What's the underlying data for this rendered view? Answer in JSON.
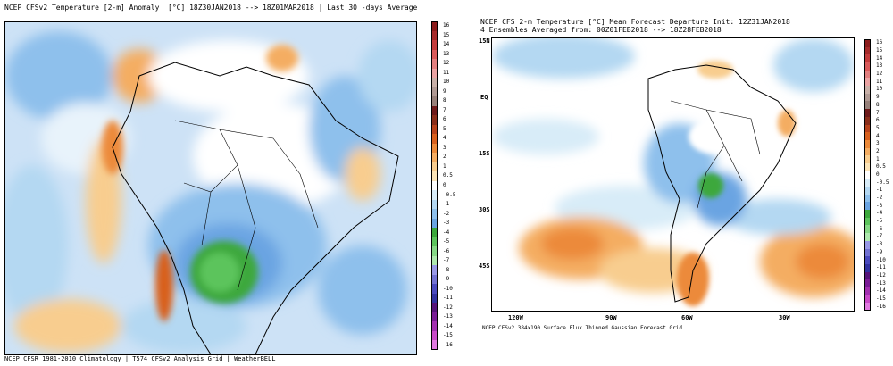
{
  "left_panel": {
    "title": "NCEP CFSv2 Temperature [2-m] Anomaly  [°C] 18Z30JAN2018 --> 18Z01MAR2018 | Last 30 -days Average",
    "footer": "NCEP CFSR 1981-2010 Climatology | T574 CFSv2 Analysis Grid | WeatherBELL",
    "colorbar_labels": [
      "16",
      "15",
      "14",
      "13",
      "12",
      "11",
      "10",
      "9",
      "8",
      "7",
      "6",
      "5",
      "4",
      "3",
      "2",
      "1",
      "0.5",
      "0",
      "-0.5",
      "-1",
      "-2",
      "-3",
      "-4",
      "-5",
      "-6",
      "-7",
      "-8",
      "-9",
      "-10",
      "-11",
      "-12",
      "-13",
      "-14",
      "-15",
      "-16"
    ]
  },
  "right_panel": {
    "title_line1": "NCEP CFS 2-m Temperature [°C] Mean Forecast Departure Init: 12Z31JAN2018",
    "title_line2": "4 Ensembles Averaged from: 00Z01FEB2018 --> 18Z28FEB2018",
    "footer": "NCEP CFSv2 384x190 Surface Flux Thinned Gaussian Forecast Grid",
    "lat_labels": [
      "15N",
      "EQ",
      "15S",
      "30S",
      "45S"
    ],
    "lon_labels": [
      "120W",
      "90W",
      "60W",
      "30W"
    ],
    "colorbar_labels": [
      "16",
      "15",
      "14",
      "13",
      "12",
      "11",
      "10",
      "9",
      "8",
      "7",
      "6",
      "5",
      "4",
      "3",
      "2",
      "1",
      "0.5",
      "0",
      "-0.5",
      "-1",
      "-2",
      "-3",
      "-4",
      "-5",
      "-6",
      "-7",
      "-8",
      "-9",
      "-10",
      "-11",
      "-12",
      "-13",
      "-14",
      "-15",
      "-16"
    ]
  },
  "colors": {
    "colorbar": [
      "#8c1c1c",
      "#a52a2a",
      "#c33c3c",
      "#d95a5a",
      "#e27f7f",
      "#eaa3a3",
      "#c8b0a8",
      "#b09a94",
      "#97817a",
      "#6e1a1a",
      "#8a2e1a",
      "#b8431c",
      "#d8601e",
      "#ec8a3a",
      "#f4ad62",
      "#f8cd8f",
      "#fbe4b8",
      "#ffffff",
      "#d8ecf8",
      "#b4d8f2",
      "#8ec0ec",
      "#6aa4e2",
      "#3ca83c",
      "#5cc45c",
      "#86d886",
      "#aee8ae",
      "#9898e6",
      "#7272d2",
      "#4a4abe",
      "#3232a0",
      "#56147a",
      "#7a1c96",
      "#a230b0",
      "#c84ac8",
      "#e07ae0"
    ],
    "land_outline": "#000000"
  }
}
